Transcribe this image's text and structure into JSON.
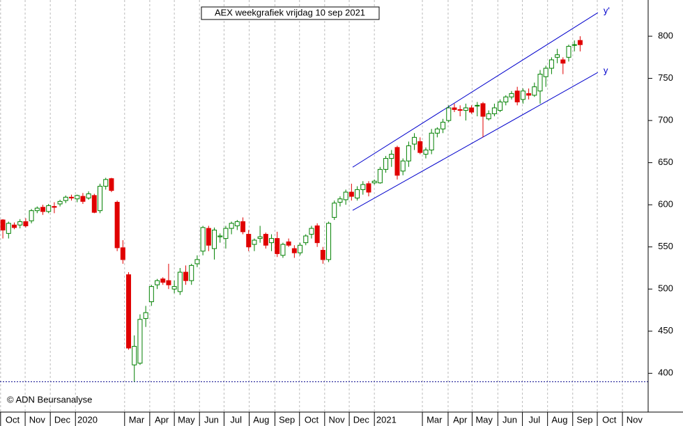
{
  "chart_data": {
    "type": "candlestick",
    "title": "AEX weekgrafiek vrijdag 10 sep 2021",
    "copyright": "© ADN Beursanalyse",
    "up_color": "#008000",
    "down_color": "#e00000",
    "grid": true,
    "xlim": [
      -0.5,
      112.9
    ],
    "ylim": [
      354,
      843
    ],
    "yticks": [
      400,
      450,
      500,
      550,
      600,
      650,
      700,
      750,
      800
    ],
    "xticks": [
      {
        "value": -0.4,
        "label": "Oct"
      },
      {
        "value": 3.9,
        "label": "Nov"
      },
      {
        "value": 8.3,
        "label": "Dec"
      },
      {
        "value": 12.7,
        "label": "2020"
      },
      {
        "value": 21.3,
        "label": "Mar"
      },
      {
        "value": 25.7,
        "label": "Apr"
      },
      {
        "value": 30,
        "label": "May"
      },
      {
        "value": 34.4,
        "label": "Jun"
      },
      {
        "value": 38.7,
        "label": "Jul"
      },
      {
        "value": 43.1,
        "label": "Aug"
      },
      {
        "value": 47.6,
        "label": "Sep"
      },
      {
        "value": 51.9,
        "label": "Oct"
      },
      {
        "value": 56.3,
        "label": "Nov"
      },
      {
        "value": 60.6,
        "label": "Dec"
      },
      {
        "value": 65,
        "label": "2021"
      },
      {
        "value": 73.4,
        "label": "Mar"
      },
      {
        "value": 77.9,
        "label": "Apr"
      },
      {
        "value": 82.1,
        "label": "May"
      },
      {
        "value": 86.6,
        "label": "Jun"
      },
      {
        "value": 90.9,
        "label": "Jul"
      },
      {
        "value": 95.3,
        "label": "Aug"
      },
      {
        "value": 99.7,
        "label": "Sep"
      },
      {
        "value": 104,
        "label": "Oct"
      },
      {
        "value": 108.4,
        "label": "Nov"
      }
    ],
    "support": {
      "value": 390,
      "color": "#00008b"
    },
    "channel": [
      {
        "label": "y'",
        "color": "#0000cc",
        "x": [
          61.2,
          104.1
        ],
        "y": [
          644.6,
          828
        ]
      },
      {
        "label": "y",
        "color": "#0000cc",
        "x": [
          61.2,
          104.1
        ],
        "y": [
          593.4,
          757
        ]
      }
    ],
    "open": [
      582,
      566,
      576,
      576,
      580,
      581,
      593,
      597,
      592,
      598,
      601,
      605,
      609,
      607,
      610,
      608,
      611,
      593,
      622,
      631,
      603,
      549,
      517,
      410,
      412,
      465,
      485,
      505,
      512,
      510,
      500,
      497,
      520,
      510,
      530,
      545,
      572,
      548,
      562,
      560,
      572,
      575,
      580,
      565,
      553,
      560,
      565,
      555,
      560,
      540,
      556,
      548,
      543,
      555,
      565,
      575,
      546,
      535,
      585,
      603,
      606,
      615,
      608,
      618,
      625,
      626,
      626,
      642,
      655,
      668,
      640,
      652,
      672,
      675,
      660,
      665,
      685,
      690,
      700,
      715,
      713,
      712,
      715,
      718,
      720,
      702,
      708,
      712,
      722,
      728,
      735,
      725,
      732,
      730,
      735,
      752,
      762,
      775,
      772,
      775,
      790,
      795
    ],
    "high": [
      583,
      580,
      579,
      583,
      584,
      595,
      598,
      600,
      601,
      603,
      606,
      611,
      612,
      612,
      614,
      616,
      613,
      625,
      632,
      632,
      605,
      558,
      520,
      445,
      470,
      480,
      505,
      512,
      514,
      530,
      510,
      525,
      528,
      530,
      540,
      575,
      575,
      573,
      566,
      575,
      580,
      582,
      585,
      570,
      560,
      575,
      567,
      565,
      568,
      555,
      560,
      552,
      555,
      565,
      575,
      578,
      550,
      580,
      605,
      610,
      618,
      625,
      622,
      628,
      628,
      630,
      645,
      658,
      665,
      670,
      655,
      675,
      685,
      680,
      668,
      690,
      692,
      702,
      718,
      720,
      718,
      720,
      718,
      722,
      722,
      712,
      720,
      725,
      730,
      735,
      740,
      738,
      738,
      745,
      760,
      765,
      775,
      785,
      775,
      790,
      795,
      800
    ],
    "low": [
      560,
      560,
      571,
      572,
      573,
      578,
      590,
      588,
      590,
      590,
      598,
      602,
      605,
      603,
      601,
      606,
      590,
      590,
      618,
      615,
      545,
      530,
      428,
      390,
      410,
      455,
      480,
      500,
      505,
      500,
      495,
      493,
      505,
      505,
      526,
      540,
      545,
      535,
      555,
      548,
      565,
      570,
      565,
      545,
      545,
      555,
      548,
      545,
      538,
      537,
      550,
      537,
      540,
      552,
      560,
      550,
      530,
      532,
      582,
      598,
      600,
      605,
      605,
      612,
      610,
      624,
      625,
      638,
      645,
      630,
      635,
      645,
      665,
      660,
      655,
      660,
      680,
      685,
      698,
      710,
      705,
      700,
      708,
      705,
      680,
      700,
      705,
      710,
      718,
      725,
      718,
      720,
      725,
      728,
      720,
      740,
      755,
      768,
      755,
      770,
      782,
      782
    ],
    "close": [
      570,
      578,
      573,
      580,
      575,
      593,
      596,
      592,
      599,
      597,
      604,
      609,
      608,
      611,
      604,
      613,
      591,
      622,
      630,
      617,
      549,
      535,
      430,
      432,
      464,
      472,
      503,
      510,
      508,
      505,
      503,
      520,
      510,
      528,
      535,
      573,
      552,
      570,
      563,
      572,
      578,
      580,
      568,
      550,
      558,
      562,
      552,
      560,
      542,
      553,
      552,
      543,
      552,
      563,
      572,
      555,
      535,
      578,
      602,
      607,
      615,
      610,
      618,
      624,
      615,
      628,
      642,
      655,
      660,
      635,
      652,
      670,
      680,
      662,
      665,
      685,
      690,
      698,
      715,
      713,
      712,
      715,
      710,
      718,
      705,
      708,
      715,
      722,
      728,
      732,
      722,
      735,
      730,
      740,
      755,
      762,
      772,
      778,
      768,
      788,
      790,
      790
    ]
  }
}
